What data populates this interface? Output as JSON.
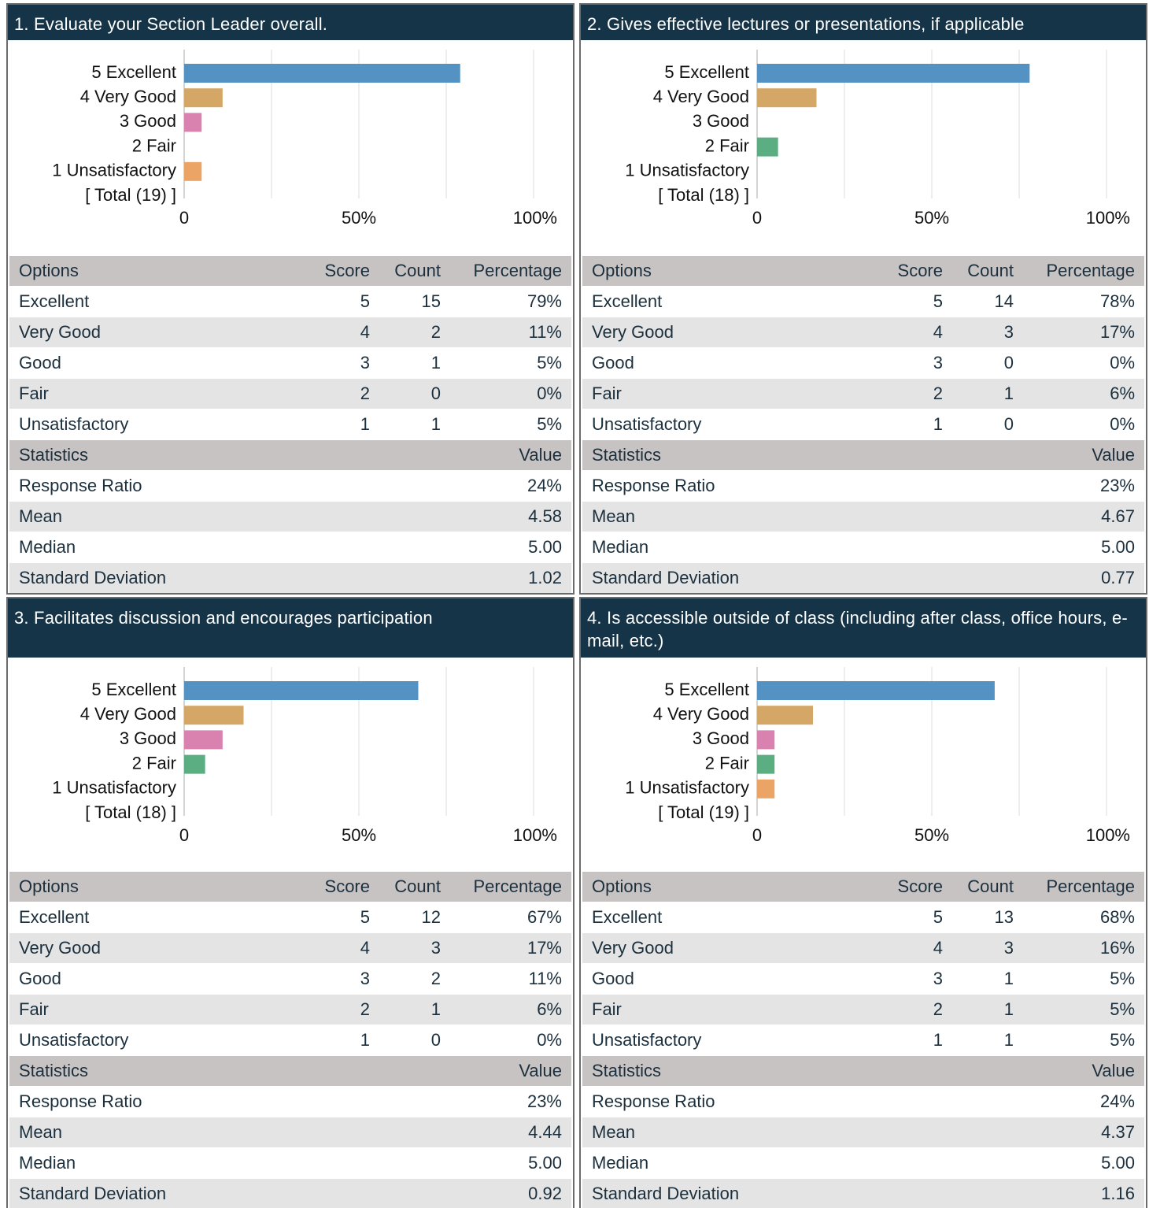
{
  "chart_data": [
    {
      "type": "bar",
      "orientation": "horizontal",
      "title": "1. Evaluate your Section Leader overall.",
      "categories": [
        "5 Excellent",
        "4 Very Good",
        "3 Good",
        "2 Fair",
        "1 Unsatisfactory",
        "[ Total (19) ]"
      ],
      "values": [
        79,
        11,
        5,
        0,
        5,
        null
      ],
      "colors": [
        "#5592c4",
        "#d4a766",
        "#d982b0",
        "#5bad82",
        "#eba465",
        null
      ],
      "xlim": [
        0,
        100
      ],
      "xticks": [
        0,
        {
          "value": 50,
          "label": "50%"
        },
        {
          "value": 100,
          "label": "100%"
        }
      ],
      "minor_xticks": [
        25,
        75
      ],
      "grid": true
    },
    {
      "type": "bar",
      "orientation": "horizontal",
      "title": "2. Gives effective lectures or presentations, if applicable",
      "categories": [
        "5 Excellent",
        "4 Very Good",
        "3 Good",
        "2 Fair",
        "1 Unsatisfactory",
        "[ Total (18) ]"
      ],
      "values": [
        78,
        17,
        0,
        6,
        0,
        null
      ],
      "colors": [
        "#5592c4",
        "#d4a766",
        "#d982b0",
        "#5bad82",
        "#eba465",
        null
      ],
      "xlim": [
        0,
        100
      ],
      "xticks": [
        0,
        {
          "value": 50,
          "label": "50%"
        },
        {
          "value": 100,
          "label": "100%"
        }
      ],
      "minor_xticks": [
        25,
        75
      ],
      "grid": true
    },
    {
      "type": "bar",
      "orientation": "horizontal",
      "title": "3. Facilitates discussion and encourages participation",
      "categories": [
        "5 Excellent",
        "4 Very Good",
        "3 Good",
        "2 Fair",
        "1 Unsatisfactory",
        "[ Total (18) ]"
      ],
      "values": [
        67,
        17,
        11,
        6,
        0,
        null
      ],
      "colors": [
        "#5592c4",
        "#d4a766",
        "#d982b0",
        "#5bad82",
        "#eba465",
        null
      ],
      "xlim": [
        0,
        100
      ],
      "xticks": [
        0,
        {
          "value": 50,
          "label": "50%"
        },
        {
          "value": 100,
          "label": "100%"
        }
      ],
      "minor_xticks": [
        25,
        75
      ],
      "grid": true
    },
    {
      "type": "bar",
      "orientation": "horizontal",
      "title": "4. Is accessible outside of class (including after class, office hours, e-mail, etc.)",
      "categories": [
        "5 Excellent",
        "4 Very Good",
        "3 Good",
        "2 Fair",
        "1 Unsatisfactory",
        "[ Total (19) ]"
      ],
      "values": [
        68,
        16,
        5,
        5,
        5,
        null
      ],
      "colors": [
        "#5592c4",
        "#d4a766",
        "#d982b0",
        "#5bad82",
        "#eba465",
        null
      ],
      "xlim": [
        0,
        100
      ],
      "xticks": [
        0,
        {
          "value": 50,
          "label": "50%"
        },
        {
          "value": 100,
          "label": "100%"
        }
      ],
      "minor_xticks": [
        25,
        75
      ],
      "grid": true
    }
  ],
  "tables": [
    {
      "header": [
        "Options",
        "Score",
        "Count",
        "Percentage"
      ],
      "rows": [
        [
          "Excellent",
          "5",
          "15",
          "79%"
        ],
        [
          "Very Good",
          "4",
          "2",
          "11%"
        ],
        [
          "Good",
          "3",
          "1",
          "5%"
        ],
        [
          "Fair",
          "2",
          "0",
          "0%"
        ],
        [
          "Unsatisfactory",
          "1",
          "1",
          "5%"
        ]
      ],
      "stats_header": [
        "Statistics",
        "Value"
      ],
      "stats": [
        [
          "Response Ratio",
          "24%"
        ],
        [
          "Mean",
          "4.58"
        ],
        [
          "Median",
          "5.00"
        ],
        [
          "Standard Deviation",
          "1.02"
        ]
      ]
    },
    {
      "header": [
        "Options",
        "Score",
        "Count",
        "Percentage"
      ],
      "rows": [
        [
          "Excellent",
          "5",
          "14",
          "78%"
        ],
        [
          "Very Good",
          "4",
          "3",
          "17%"
        ],
        [
          "Good",
          "3",
          "0",
          "0%"
        ],
        [
          "Fair",
          "2",
          "1",
          "6%"
        ],
        [
          "Unsatisfactory",
          "1",
          "0",
          "0%"
        ]
      ],
      "stats_header": [
        "Statistics",
        "Value"
      ],
      "stats": [
        [
          "Response Ratio",
          "23%"
        ],
        [
          "Mean",
          "4.67"
        ],
        [
          "Median",
          "5.00"
        ],
        [
          "Standard Deviation",
          "0.77"
        ]
      ]
    },
    {
      "header": [
        "Options",
        "Score",
        "Count",
        "Percentage"
      ],
      "rows": [
        [
          "Excellent",
          "5",
          "12",
          "67%"
        ],
        [
          "Very Good",
          "4",
          "3",
          "17%"
        ],
        [
          "Good",
          "3",
          "2",
          "11%"
        ],
        [
          "Fair",
          "2",
          "1",
          "6%"
        ],
        [
          "Unsatisfactory",
          "1",
          "0",
          "0%"
        ]
      ],
      "stats_header": [
        "Statistics",
        "Value"
      ],
      "stats": [
        [
          "Response Ratio",
          "23%"
        ],
        [
          "Mean",
          "4.44"
        ],
        [
          "Median",
          "5.00"
        ],
        [
          "Standard Deviation",
          "0.92"
        ]
      ]
    },
    {
      "header": [
        "Options",
        "Score",
        "Count",
        "Percentage"
      ],
      "rows": [
        [
          "Excellent",
          "5",
          "13",
          "68%"
        ],
        [
          "Very Good",
          "4",
          "3",
          "16%"
        ],
        [
          "Good",
          "3",
          "1",
          "5%"
        ],
        [
          "Fair",
          "2",
          "1",
          "5%"
        ],
        [
          "Unsatisfactory",
          "1",
          "1",
          "5%"
        ]
      ],
      "stats_header": [
        "Statistics",
        "Value"
      ],
      "stats": [
        [
          "Response Ratio",
          "24%"
        ],
        [
          "Mean",
          "4.37"
        ],
        [
          "Median",
          "5.00"
        ],
        [
          "Standard Deviation",
          "1.16"
        ]
      ]
    }
  ]
}
